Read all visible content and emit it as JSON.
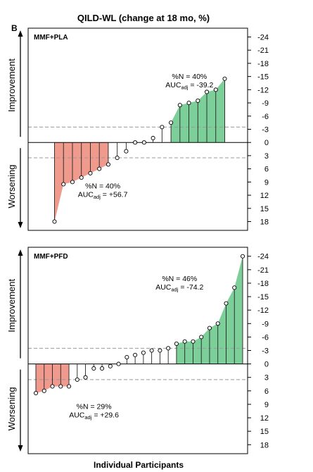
{
  "figure": {
    "title": "QILD-WL (change at 18 mo, %)",
    "panel_letter": "B",
    "xlabel": "Individual Participants"
  },
  "colors": {
    "improvement_fill": "#7dcf9a",
    "worsening_fill": "#ef9a8d",
    "axis": "#000000",
    "dashed": "#999999"
  },
  "chart_data": [
    {
      "type": "bar",
      "title": "MMF+PLA",
      "ylabel_top": "Improvement",
      "ylabel_bottom": "Worsening",
      "y_inverted": true,
      "ylim": [
        -26,
        20
      ],
      "ytick_labels": [
        "-24",
        "-21",
        "-18",
        "-15",
        "-12",
        "-9",
        "-6",
        "-3",
        "0",
        "3",
        "6",
        "9",
        "12",
        "15",
        "18"
      ],
      "ytick_values": [
        -24,
        -21,
        -18,
        -15,
        -12,
        -9,
        -6,
        -3,
        0,
        3,
        6,
        9,
        12,
        15,
        18
      ],
      "mcid_lines": [
        -3.5,
        3.5
      ],
      "values": [
        18,
        9.5,
        9,
        8,
        7,
        6,
        5,
        3.5,
        2,
        0,
        0,
        -1,
        -3.5,
        -4.5,
        -8.5,
        -9,
        -9.5,
        -11.5,
        -12,
        -14.5
      ],
      "annotations": [
        {
          "text_main": "%N = 40%",
          "text_auc_prefix": "AUC",
          "text_auc_sub": "adj",
          "text_auc_value": " = -39.2",
          "anchor_x": 0.735,
          "anchor_y": -14.5
        },
        {
          "text_main": "%N = 40%",
          "text_auc_prefix": "AUC",
          "text_auc_sub": "adj",
          "text_auc_value": " = +56.7",
          "anchor_x": 0.34,
          "anchor_y": 10.5
        }
      ]
    },
    {
      "type": "bar",
      "title": "MMF+PFD",
      "ylabel_top": "Improvement",
      "ylabel_bottom": "Worsening",
      "y_inverted": true,
      "ylim": [
        -26,
        20
      ],
      "ytick_labels": [
        "-24",
        "-21",
        "-18",
        "-15",
        "-12",
        "-9",
        "-6",
        "-3",
        "0",
        "3",
        "6",
        "9",
        "12",
        "15",
        "18"
      ],
      "ytick_values": [
        -24,
        -21,
        -18,
        -15,
        -12,
        -9,
        -6,
        -3,
        0,
        3,
        6,
        9,
        12,
        15,
        18
      ],
      "mcid_lines": [
        -3.5,
        3.5
      ],
      "values": [
        6.5,
        6,
        5,
        5,
        5,
        3.5,
        3,
        1,
        1,
        0.5,
        0,
        -1.5,
        -2,
        -2.5,
        -3,
        -3,
        -3.5,
        -4.5,
        -5,
        -5,
        -6,
        -8,
        -9,
        -13.5,
        -17,
        -24
      ],
      "annotations": [
        {
          "text_main": "%N = 46%",
          "text_auc_prefix": "AUC",
          "text_auc_sub": "adj",
          "text_auc_value": " = -74.2",
          "anchor_x": 0.69,
          "anchor_y": -18.5
        },
        {
          "text_main": "%N = 29%",
          "text_auc_prefix": "AUC",
          "text_auc_sub": "adj",
          "text_auc_value": " = +29.6",
          "anchor_x": 0.3,
          "anchor_y": 10
        }
      ]
    }
  ]
}
